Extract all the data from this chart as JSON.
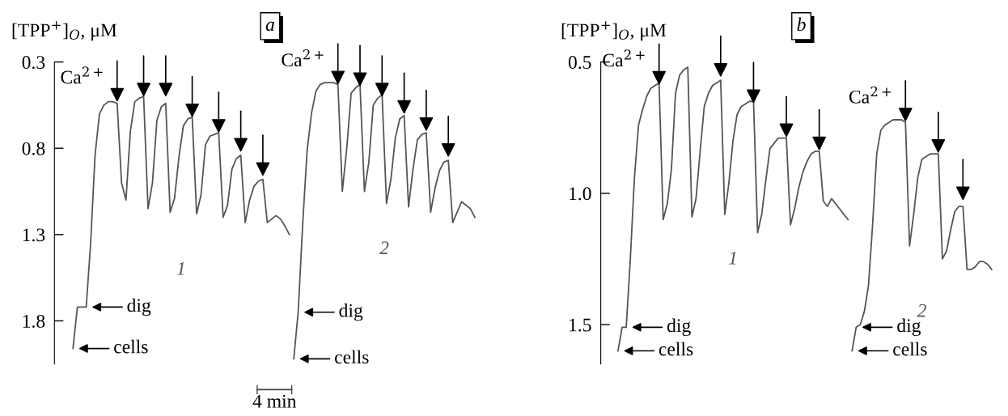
{
  "chart_data": [
    {
      "type": "line",
      "title": "a",
      "ylabel": "[TPP$^{+}$]$_{O}$, μM",
      "ylim": [
        2.05,
        0.3
      ],
      "yticks": [
        0.3,
        0.8,
        1.3,
        1.8
      ],
      "tick_labels": "y",
      "categories": [
        null,
        null,
        null,
        null,
        null,
        null,
        null,
        null,
        null,
        null,
        null,
        null,
        null,
        null,
        null,
        null,
        null,
        null,
        null,
        null,
        null,
        null,
        null,
        null,
        null,
        null,
        null,
        null,
        null,
        null,
        null,
        null,
        null,
        null,
        null,
        null,
        null,
        null,
        null,
        null,
        null,
        null,
        null,
        null,
        null,
        null,
        null,
        null,
        null,
        null,
        null,
        null,
        null,
        null,
        null,
        null,
        null,
        null,
        null,
        null,
        null,
        null,
        null,
        null,
        null,
        null,
        null,
        null,
        null,
        null,
        null,
        null,
        null,
        null,
        null,
        null,
        null,
        null,
        null,
        null,
        null,
        null,
        null,
        null,
        null,
        null,
        null,
        null,
        null,
        null,
        null,
        null
      ],
      "series": [
        {
          "name": "1",
          "color": "#555555",
          "values": [
            1.96,
            1.72,
            1.72,
            1.72,
            1.35,
            0.84,
            0.6,
            0.55,
            0.53,
            0.53,
            0.54,
            1.0,
            1.1,
            0.7,
            0.53,
            0.51,
            0.5,
            1.15,
            1.0,
            0.64,
            0.56,
            0.54,
            1.17,
            1.09,
            0.85,
            0.67,
            0.63,
            0.62,
            1.18,
            1.07,
            0.78,
            0.73,
            0.72,
            0.71,
            1.2,
            1.13,
            0.92,
            0.86,
            0.84,
            1.23,
            1.1,
            1.02,
            0.99,
            0.98,
            1.23,
            1.21,
            1.19,
            1.21,
            1.25,
            1.3,
            null,
            null,
            null,
            null,
            null,
            null,
            null,
            null,
            null,
            null,
            null,
            null,
            null,
            null,
            null,
            null,
            null,
            null,
            null,
            null,
            null,
            null,
            null,
            null,
            null,
            null,
            null,
            null,
            null,
            null,
            null,
            null,
            null,
            null,
            null,
            null,
            null,
            null,
            null,
            null,
            null,
            null
          ]
        },
        {
          "name": "2",
          "color": "#555555",
          "values": [
            null,
            null,
            null,
            null,
            null,
            null,
            null,
            null,
            null,
            null,
            null,
            null,
            null,
            null,
            null,
            null,
            null,
            null,
            null,
            null,
            null,
            null,
            null,
            null,
            null,
            null,
            null,
            null,
            null,
            null,
            null,
            null,
            null,
            null,
            null,
            null,
            null,
            null,
            null,
            null,
            null,
            null,
            null,
            null,
            null,
            null,
            null,
            null,
            null,
            null,
            2.02,
            1.75,
            1.25,
            0.82,
            0.6,
            0.47,
            0.43,
            0.42,
            0.42,
            0.42,
            0.43,
            1.05,
            0.8,
            0.48,
            0.45,
            0.43,
            1.05,
            0.88,
            0.55,
            0.51,
            0.49,
            1.12,
            0.98,
            0.74,
            0.63,
            0.61,
            1.14,
            0.92,
            0.75,
            0.72,
            0.71,
            1.17,
            1.03,
            0.93,
            0.88,
            0.87,
            1.23,
            1.17,
            1.11,
            1.13,
            1.15,
            1.2
          ]
        },
        {
          "type": "scatter",
          "marker": "triangle",
          "color": "#000000",
          "values": [
            null,
            null,
            null,
            null,
            null,
            null,
            null,
            null,
            null,
            null,
            0.49,
            null,
            null,
            null,
            null,
            null,
            0.46,
            null,
            null,
            null,
            null,
            0.46,
            null,
            null,
            null,
            null,
            null,
            0.58,
            null,
            null,
            null,
            null,
            null,
            0.67,
            null,
            null,
            null,
            null,
            0.78,
            null,
            null,
            null,
            null,
            0.92,
            null,
            null,
            null,
            null,
            null,
            null,
            null,
            null,
            null,
            null,
            null,
            null,
            null,
            null,
            null,
            null,
            0.39,
            null,
            null,
            null,
            null,
            0.4,
            null,
            null,
            null,
            null,
            0.46,
            null,
            null,
            null,
            null,
            0.56,
            null,
            null,
            null,
            null,
            0.66,
            null,
            null,
            null,
            null,
            0.81,
            null,
            null,
            null,
            null,
            null,
            null
          ]
        }
      ],
      "annotations": [
        "Ca$^{2+}$",
        "dig",
        "cells",
        "Ca$^{2+}$",
        "dig",
        "cells",
        "4 min"
      ]
    },
    {
      "type": "line",
      "title": "b",
      "ylabel": "[TPP$^{+}$]$_{O}$, μM",
      "ylim": [
        1.65,
        0.5
      ],
      "yticks": [
        {
          "value": 0.5,
          "label": "0.5"
        },
        {
          "value": 1.0,
          "label": "1.0"
        },
        {
          "value": 1.5,
          "label": "1.5"
        }
      ],
      "tick_labels": "y",
      "categories": [
        null,
        null,
        null,
        null,
        null,
        null,
        null,
        null,
        null,
        null,
        null,
        null,
        null,
        null,
        null,
        null,
        null,
        null,
        null,
        null,
        null,
        null,
        null,
        null,
        null,
        null,
        null,
        null,
        null,
        null,
        null,
        null,
        null,
        null,
        null,
        null,
        null,
        null,
        null,
        null,
        null,
        null,
        null,
        null,
        null,
        null,
        null,
        null,
        null,
        null,
        null,
        null,
        null,
        null,
        null,
        null,
        null,
        null,
        null,
        null,
        null,
        null,
        null,
        null,
        null,
        null,
        null,
        null,
        null,
        null,
        null,
        null,
        null,
        null,
        null,
        null,
        null,
        null,
        null,
        null,
        null,
        null,
        null,
        null,
        null,
        null,
        null,
        null,
        null,
        null,
        null,
        null
      ],
      "series": [
        {
          "name": "1",
          "color": "#555555",
          "values": [
            1.6,
            1.51,
            1.51,
            1.25,
            0.94,
            0.74,
            0.68,
            0.63,
            0.6,
            0.59,
            0.58,
            1.1,
            1.04,
            0.91,
            0.62,
            0.55,
            0.53,
            0.52,
            1.09,
            1.02,
            0.84,
            0.67,
            0.62,
            0.59,
            0.58,
            0.57,
            1.08,
            0.96,
            0.8,
            0.7,
            0.67,
            0.66,
            0.65,
            0.65,
            1.15,
            1.08,
            0.95,
            0.83,
            0.81,
            0.79,
            0.79,
            0.79,
            1.12,
            1.06,
            0.98,
            0.92,
            0.88,
            0.85,
            0.84,
            0.84,
            1.03,
            1.05,
            1.02,
            1.04,
            1.06,
            1.08,
            1.1,
            null,
            null,
            null,
            null,
            null,
            null,
            null,
            null,
            null,
            null,
            null,
            null,
            null,
            null,
            null,
            null,
            null,
            null,
            null,
            null,
            null,
            null,
            null,
            null,
            null,
            null,
            null,
            null,
            null,
            null,
            null,
            null,
            null,
            null,
            null
          ]
        },
        {
          "name": "2",
          "color": "#555555",
          "values": [
            null,
            null,
            null,
            null,
            null,
            null,
            null,
            null,
            null,
            null,
            null,
            null,
            null,
            null,
            null,
            null,
            null,
            null,
            null,
            null,
            null,
            null,
            null,
            null,
            null,
            null,
            null,
            null,
            null,
            null,
            null,
            null,
            null,
            null,
            null,
            null,
            null,
            null,
            null,
            null,
            null,
            null,
            null,
            null,
            null,
            null,
            null,
            null,
            null,
            null,
            null,
            null,
            null,
            null,
            null,
            null,
            null,
            1.6,
            1.51,
            1.5,
            1.45,
            1.35,
            1.12,
            0.85,
            0.76,
            0.74,
            0.73,
            0.72,
            0.72,
            0.72,
            0.73,
            1.2,
            1.08,
            0.94,
            0.87,
            0.86,
            0.85,
            0.85,
            0.85,
            1.25,
            1.22,
            1.14,
            1.07,
            1.05,
            1.05,
            1.29,
            1.29,
            1.28,
            1.26,
            1.26,
            1.27,
            1.29
          ]
        },
        {
          "type": "scatter",
          "marker": "triangle",
          "color": "#000000",
          "values": [
            null,
            null,
            null,
            null,
            null,
            null,
            null,
            null,
            null,
            null,
            0.56,
            null,
            null,
            null,
            null,
            null,
            null,
            null,
            null,
            null,
            null,
            null,
            null,
            null,
            null,
            0.53,
            null,
            null,
            null,
            null,
            null,
            null,
            null,
            0.63,
            null,
            null,
            null,
            null,
            null,
            null,
            null,
            0.76,
            null,
            null,
            null,
            null,
            null,
            null,
            null,
            0.81,
            null,
            null,
            null,
            null,
            null,
            null,
            null,
            null,
            null,
            null,
            null,
            null,
            null,
            null,
            null,
            null,
            null,
            null,
            null,
            null,
            0.7,
            null,
            null,
            null,
            null,
            null,
            null,
            null,
            0.82,
            null,
            null,
            null,
            null,
            null,
            1.0,
            null,
            null,
            null,
            null,
            null,
            null,
            null
          ]
        }
      ],
      "annotations": [
        "Ca$^{2+}$",
        "dig",
        "cells",
        "Ca$^{2+}$",
        "dig",
        "cells"
      ]
    }
  ]
}
